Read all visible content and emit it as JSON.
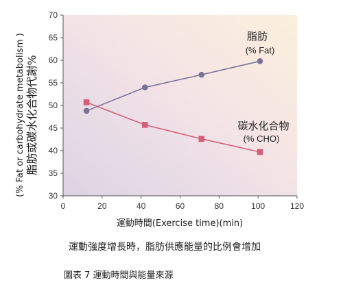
{
  "chart_data": {
    "type": "line",
    "ylabel_line1": "(% Fat or carbohydrate metabolism )",
    "ylabel_line2": "脂肪或碳水化合物代謝%",
    "xlabel": "運動時間(Exercise time)(min)",
    "xlim": [
      0,
      120
    ],
    "ylim": [
      30,
      70
    ],
    "xticks": [
      0,
      20,
      40,
      60,
      80,
      100,
      120
    ],
    "yticks": [
      30,
      35,
      40,
      45,
      50,
      55,
      60,
      65,
      70
    ],
    "grid": false,
    "series": [
      {
        "label_zh": "脂肪",
        "label_en": "(% Fat)",
        "marker": "circle",
        "color": "#7b7196",
        "x": [
          12,
          42,
          71,
          101
        ],
        "y": [
          48.8,
          54,
          56.8,
          59.8
        ]
      },
      {
        "label_zh": "碳水化合物",
        "label_en": "(% CHO)",
        "marker": "square",
        "color": "#d2607a",
        "x": [
          12,
          42,
          71,
          101
        ],
        "y": [
          50.7,
          45.7,
          42.6,
          39.7
        ]
      }
    ]
  },
  "caption": "運動強度增長時，脂肪供應能量的比例會增加",
  "figure_label": "圖表 7  運動時間與能量來源"
}
